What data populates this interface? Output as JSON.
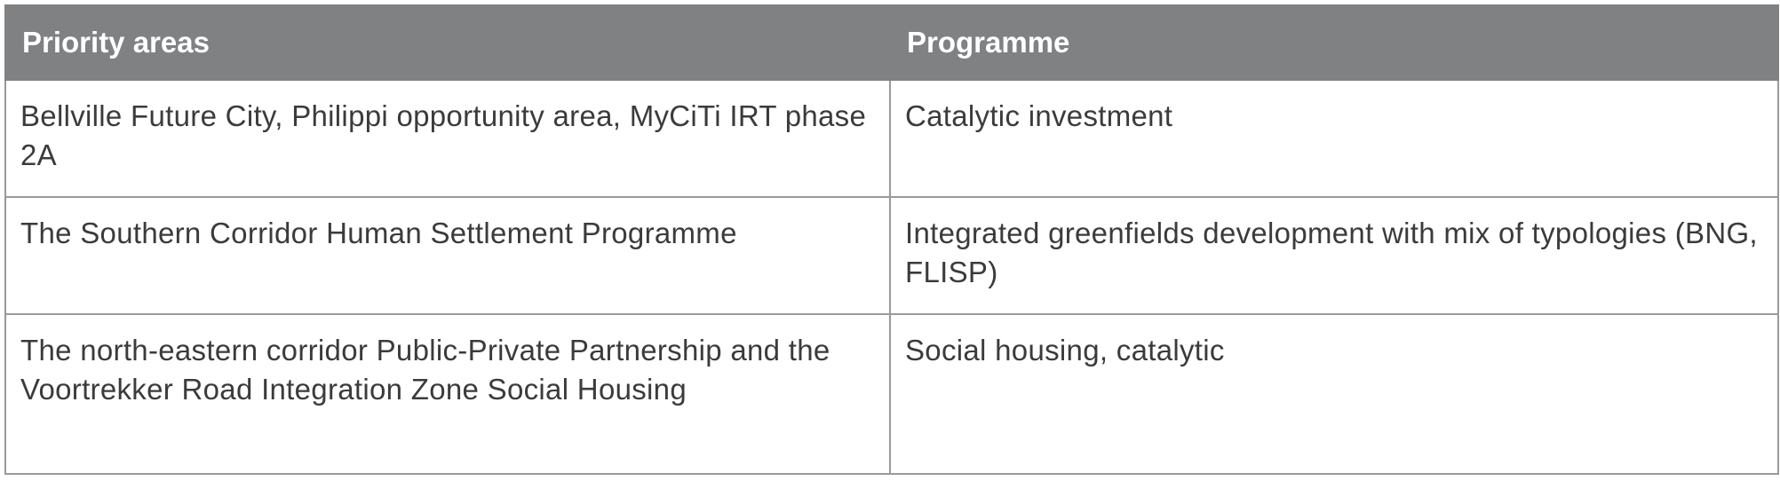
{
  "table": {
    "headers": [
      "Priority areas",
      "Programme"
    ],
    "rows": [
      {
        "priority_area": "Bellville Future City, Philippi opportunity area, MyCiTi IRT phase 2A",
        "programme": "Catalytic investment"
      },
      {
        "priority_area": "The Southern Corridor Human Settlement Programme",
        "programme": "Integrated greenfields development with mix of typologies (BNG, FLISP)"
      },
      {
        "priority_area": "The north-eastern corridor Public-Private Partnership and the Voortrekker Road Integration Zone Social Housing",
        "programme": "Social housing, catalytic"
      }
    ]
  },
  "colors": {
    "header_background": "#808183",
    "header_text": "#ffffff",
    "border": "#9a9a9c",
    "body_text": "#3b3b3d"
  }
}
